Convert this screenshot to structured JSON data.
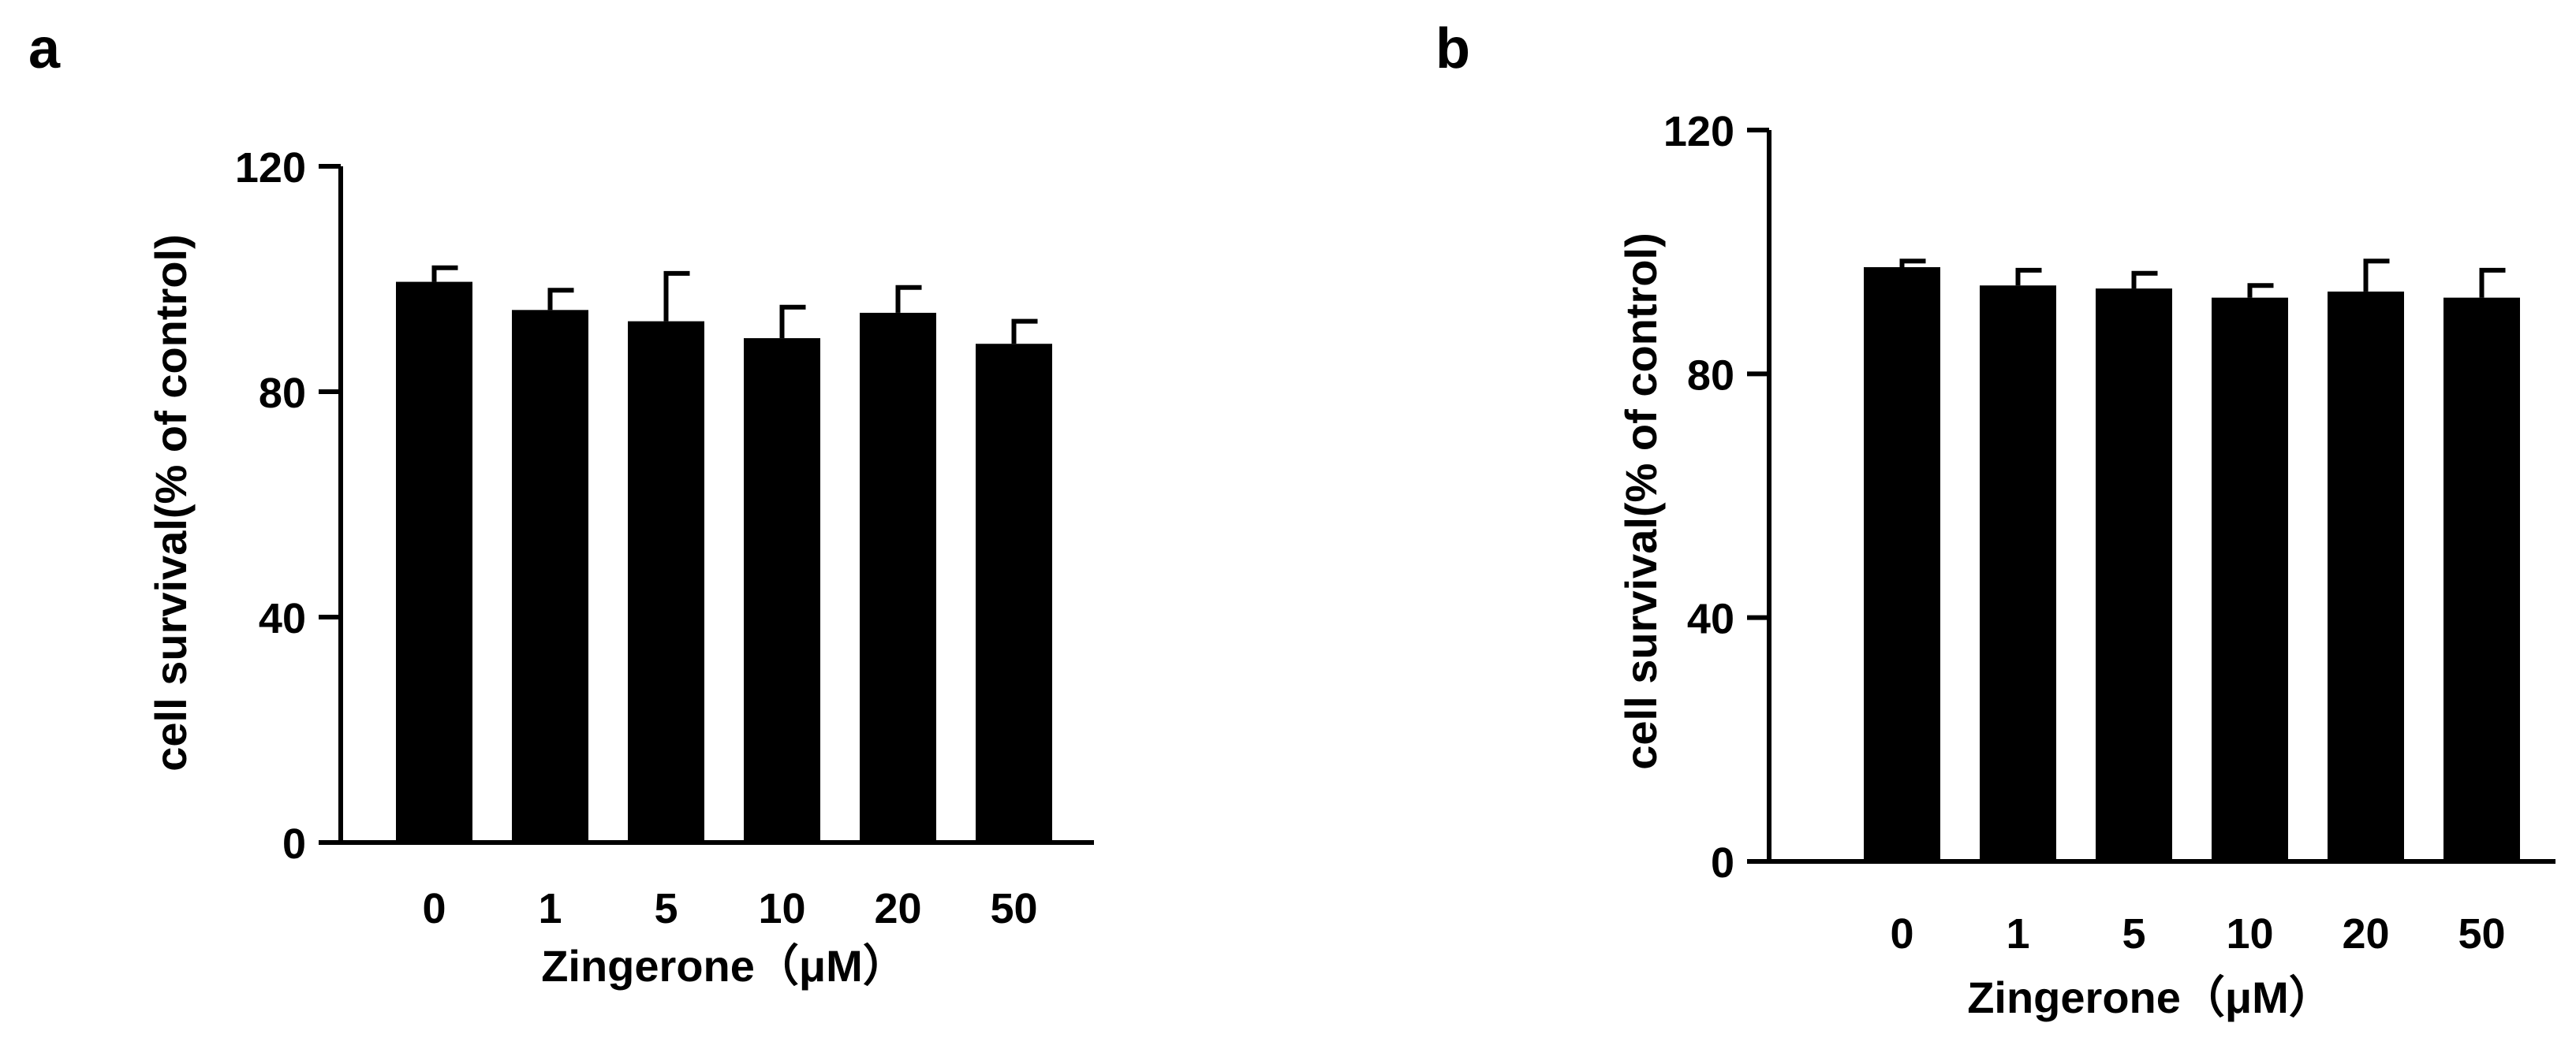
{
  "chart_data": [
    {
      "panel_label": "a",
      "type": "bar",
      "categories": [
        "0",
        "1",
        "5",
        "10",
        "20",
        "50"
      ],
      "values": [
        99.5,
        94.5,
        92.5,
        89.5,
        94.0,
        88.5
      ],
      "errors": [
        2.5,
        3.5,
        8.5,
        5.5,
        4.5,
        4.0
      ],
      "xlabel": "Zingerone（μM）",
      "ylabel": "cell survival(% of control)",
      "ylim": [
        0,
        120
      ],
      "yticks": [
        "0",
        "40",
        "80",
        "120"
      ],
      "bar_color": "#000000",
      "grid": false,
      "legend": "none"
    },
    {
      "panel_label": "b",
      "type": "bar",
      "categories": [
        "0",
        "1",
        "5",
        "10",
        "20",
        "50"
      ],
      "values": [
        97.5,
        94.5,
        94.0,
        92.5,
        93.5,
        92.5
      ],
      "errors": [
        1.0,
        2.5,
        2.5,
        2.0,
        5.0,
        4.5
      ],
      "xlabel": "Zingerone（μM）",
      "ylabel": "cell survival(% of control)",
      "ylim": [
        0,
        120
      ],
      "yticks": [
        "0",
        "40",
        "80",
        "120"
      ],
      "bar_color": "#000000",
      "grid": false,
      "legend": "none"
    }
  ]
}
